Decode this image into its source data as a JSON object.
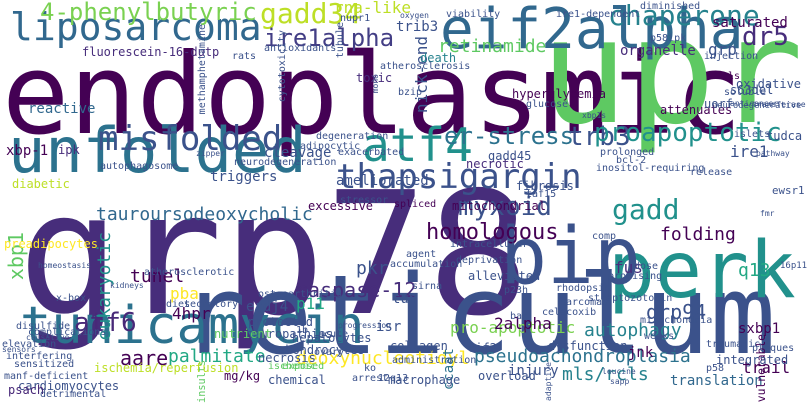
{
  "colors": {
    "background": "#ffffff"
  },
  "words": [
    {
      "text": "endoplasmic",
      "color": "#440154"
    },
    {
      "text": "grp78",
      "color": "#472d7b"
    },
    {
      "text": "upr",
      "color": "#5ec962"
    },
    {
      "text": "reticulum",
      "color": "#3b528b"
    },
    {
      "text": "unfolded",
      "color": "#2c728e"
    },
    {
      "text": "perk",
      "color": "#21918c"
    },
    {
      "text": "bip",
      "color": "#3b528b"
    },
    {
      "text": "eif2alpha",
      "color": "#31688e"
    },
    {
      "text": "atf4",
      "color": "#21918c"
    },
    {
      "text": "tunicamycin",
      "color": "#2c728e"
    },
    {
      "text": "liposarcoma",
      "color": "#31688e"
    },
    {
      "text": "misfolded",
      "color": "#3b528b"
    },
    {
      "text": "thapsigargin",
      "color": "#3b528b"
    },
    {
      "text": "homologous",
      "color": "#440154"
    },
    {
      "text": "myxoid",
      "color": "#3b528b"
    },
    {
      "text": "gadd34",
      "color": "#bddf26"
    },
    {
      "text": "chaperone",
      "color": "#26828e"
    },
    {
      "text": "er-stress",
      "color": "#2c728e"
    },
    {
      "text": "trb3",
      "color": "#3b528b"
    },
    {
      "text": "proapoptotic",
      "color": "#21918c"
    },
    {
      "text": "4-phenylbutyric",
      "color": "#7ad151"
    },
    {
      "text": "ire1alpha",
      "color": "#433e85"
    },
    {
      "text": "dr5",
      "color": "#472d7b"
    },
    {
      "text": "gadd",
      "color": "#21918c"
    },
    {
      "text": "atf6",
      "color": "#482878"
    },
    {
      "text": "caspase-12",
      "color": "#472d7b"
    },
    {
      "text": "tauroursodeoxycholic",
      "color": "#31688e"
    },
    {
      "text": "grp94",
      "color": "#3b528b"
    },
    {
      "text": "pseudoachondroplasia",
      "color": "#2c728e"
    },
    {
      "text": "deoxynucleotidyl",
      "color": "#fde725"
    },
    {
      "text": "mls/rcls",
      "color": "#26828e"
    },
    {
      "text": "palmitate",
      "color": "#22a884"
    },
    {
      "text": "aare",
      "color": "#440154"
    },
    {
      "text": "retinamide",
      "color": "#5ec962"
    },
    {
      "text": "autophagy",
      "color": "#26828e"
    },
    {
      "text": "pro-apoptotic",
      "color": "#7ad151"
    },
    {
      "text": "xbp1",
      "color": "#5ec962"
    },
    {
      "text": "folding",
      "color": "#440154"
    },
    {
      "text": "nick-end",
      "color": "#3b528b"
    },
    {
      "text": "ire1",
      "color": "#3b528b"
    },
    {
      "text": "pkr",
      "color": "#3b528b"
    },
    {
      "text": "2alpha",
      "color": "#440154"
    },
    {
      "text": "trail",
      "color": "#440154"
    },
    {
      "text": "fus",
      "color": "#472d7b"
    },
    {
      "text": "q13",
      "color": "#22a884"
    },
    {
      "text": "tunel",
      "color": "#440154"
    },
    {
      "text": "pba",
      "color": "#fde725"
    },
    {
      "text": "4hpr",
      "color": "#440154"
    },
    {
      "text": "p11",
      "color": "#22a884"
    },
    {
      "text": "tun",
      "color": "#3b528b"
    },
    {
      "text": "erdj4",
      "color": "#3b528b"
    },
    {
      "text": "isr",
      "color": "#3b528b"
    },
    {
      "text": "ccaat",
      "color": "#2c728e"
    },
    {
      "text": "eif2",
      "color": "#3b528b"
    },
    {
      "text": "gadd45",
      "color": "#3b528b"
    },
    {
      "text": "necrotic",
      "color": "#472d7b"
    },
    {
      "text": "triggers",
      "color": "#3b528b"
    },
    {
      "text": "cleavage",
      "color": "#3b528b"
    },
    {
      "text": "ameliorated",
      "color": "#3b528b"
    },
    {
      "text": "organelle",
      "color": "#472d7b"
    },
    {
      "text": "saturated",
      "color": "#440154"
    },
    {
      "text": "grp",
      "color": "#3b528b"
    },
    {
      "text": "sxbp1",
      "color": "#440154"
    },
    {
      "text": "injury",
      "color": "#3b528b"
    },
    {
      "text": "jnk",
      "color": "#440154"
    },
    {
      "text": "dysfunction",
      "color": "#3b528b"
    },
    {
      "text": "translation",
      "color": "#31688e"
    },
    {
      "text": "preadipocytes",
      "color": "#fde725"
    },
    {
      "text": "reactive",
      "color": "#31688e"
    },
    {
      "text": "xbp-1",
      "color": "#440154"
    },
    {
      "text": "ipk",
      "color": "#472d7b"
    },
    {
      "text": "eukaryotic",
      "color": "#21918c"
    },
    {
      "text": "insults",
      "color": "#5ec962"
    },
    {
      "text": "protected",
      "color": "#3b528b"
    },
    {
      "text": "vulnerable",
      "color": "#440154"
    },
    {
      "text": "neurodegenerative",
      "color": "#3b528b"
    },
    {
      "text": "s63del",
      "color": "#3b528b"
    },
    {
      "text": "ewsr1",
      "color": "#3b528b"
    },
    {
      "text": "tudca",
      "color": "#3b528b"
    },
    {
      "text": "rna-like",
      "color": "#bddf26"
    },
    {
      "text": "trib3",
      "color": "#3b528b"
    },
    {
      "text": "fluorescein-16-dutp",
      "color": "#472d7b"
    },
    {
      "text": "diabetic",
      "color": "#bddf26"
    },
    {
      "text": "ischemia/reperfusion",
      "color": "#bddf26"
    },
    {
      "text": "cardiomyocytes",
      "color": "#3b528b"
    },
    {
      "text": "psach",
      "color": "#482878"
    },
    {
      "text": "mg/kg",
      "color": "#440154"
    },
    {
      "text": "death",
      "color": "#26828e"
    },
    {
      "text": "toxic",
      "color": "#472d7b"
    },
    {
      "text": "bzip",
      "color": "#3b528b"
    },
    {
      "text": "neuropathies",
      "color": "#3b528b"
    },
    {
      "text": "chondrocytes",
      "color": "#3b528b"
    },
    {
      "text": "hepatocytes",
      "color": "#3b528b"
    },
    {
      "text": "osteoarthritis",
      "color": "#3b528b"
    },
    {
      "text": "collagen",
      "color": "#3b528b"
    },
    {
      "text": "macrophage",
      "color": "#3b528b"
    },
    {
      "text": "administration",
      "color": "#3b528b"
    },
    {
      "text": "accumulation",
      "color": "#3b528b"
    },
    {
      "text": "chemical",
      "color": "#3b528b"
    },
    {
      "text": "necrosis",
      "color": "#3b528b"
    },
    {
      "text": "nutrient",
      "color": "#5ec962"
    },
    {
      "text": "exposed",
      "color": "#5ec962"
    },
    {
      "text": "ischemic",
      "color": "#5ec962"
    },
    {
      "text": "attenuates",
      "color": "#440154"
    },
    {
      "text": "uorf",
      "color": "#3b528b"
    },
    {
      "text": "integrated",
      "color": "#3b528b"
    },
    {
      "text": "plaques",
      "color": "#3b528b"
    },
    {
      "text": "overload",
      "color": "#3b528b"
    },
    {
      "text": "adaptive",
      "color": "#3b528b"
    },
    {
      "text": "mitochondrial",
      "color": "#440154"
    },
    {
      "text": "hyperglycemia",
      "color": "#440154"
    },
    {
      "text": "excessive",
      "color": "#440154"
    },
    {
      "text": "fibrosis",
      "color": "#3b528b"
    },
    {
      "text": "spliced",
      "color": "#440154"
    },
    {
      "text": "oxidative",
      "color": "#3b528b"
    },
    {
      "text": "transferase",
      "color": "#3b528b"
    },
    {
      "text": "islets",
      "color": "#3b528b"
    },
    {
      "text": "injection",
      "color": "#3b528b"
    },
    {
      "text": "tls",
      "color": "#440154"
    },
    {
      "text": "16p11",
      "color": "#3b528b"
    },
    {
      "text": "sarcomas",
      "color": "#3b528b"
    },
    {
      "text": "deprivation",
      "color": "#3b528b"
    },
    {
      "text": "alleviated",
      "color": "#3b528b"
    },
    {
      "text": "rhodopsin",
      "color": "#3b528b"
    },
    {
      "text": "bax",
      "color": "#3b528b"
    },
    {
      "text": "celecoxib",
      "color": "#3b528b"
    },
    {
      "text": "p23h",
      "color": "#3b528b"
    },
    {
      "text": "sirna",
      "color": "#3b528b"
    },
    {
      "text": "agent",
      "color": "#3b528b"
    },
    {
      "text": "ko",
      "color": "#3b528b"
    },
    {
      "text": "12q13",
      "color": "#3b528b"
    },
    {
      "text": "arrest",
      "color": "#3b528b"
    },
    {
      "text": "acute",
      "color": "#3b528b"
    },
    {
      "text": "1b",
      "color": "#3b528b"
    },
    {
      "text": "atherosclerotic",
      "color": "#3b528b"
    },
    {
      "text": "diet",
      "color": "#3b528b"
    },
    {
      "text": "secretory",
      "color": "#3b528b"
    },
    {
      "text": "disulfide",
      "color": "#3b528b"
    },
    {
      "text": "elevation",
      "color": "#3b528b"
    },
    {
      "text": "sensors",
      "color": "#3b528b"
    },
    {
      "text": "interfering",
      "color": "#3b528b"
    },
    {
      "text": "sensitized",
      "color": "#3b528b"
    },
    {
      "text": "manf-deficient",
      "color": "#3b528b"
    },
    {
      "text": "detrimental",
      "color": "#3b528b"
    },
    {
      "text": "complications",
      "color": "#3b528b"
    },
    {
      "text": "causative",
      "color": "#3b528b"
    },
    {
      "text": "autophagosome",
      "color": "#3b528b"
    },
    {
      "text": "neurodegeneration",
      "color": "#3b528b"
    },
    {
      "text": "degeneration",
      "color": "#3b528b"
    },
    {
      "text": "rats",
      "color": "#3b528b"
    },
    {
      "text": "antioxidants",
      "color": "#3b528b"
    },
    {
      "text": "viability",
      "color": "#3b528b"
    },
    {
      "text": "ire1-dependent",
      "color": "#3b528b"
    },
    {
      "text": "intracellular",
      "color": "#3b528b"
    },
    {
      "text": "zipper",
      "color": "#3b528b"
    },
    {
      "text": "exacerbated",
      "color": "#3b528b"
    },
    {
      "text": "atherosclerosis",
      "color": "#3b528b"
    },
    {
      "text": "adipocytic",
      "color": "#3b528b"
    },
    {
      "text": "glucose",
      "color": "#3b528b"
    },
    {
      "text": "bcl-2",
      "color": "#3b528b"
    },
    {
      "text": "nupr1",
      "color": "#3b528b"
    },
    {
      "text": "taf15",
      "color": "#3b528b"
    },
    {
      "text": "weeks",
      "color": "#3b528b"
    },
    {
      "text": "mitochondria",
      "color": "#3b528b"
    },
    {
      "text": "traumatic",
      "color": "#3b528b"
    },
    {
      "text": "p58",
      "color": "#3b528b"
    },
    {
      "text": "inositol-requiring",
      "color": "#3b528b"
    },
    {
      "text": "release",
      "color": "#3b528b"
    },
    {
      "text": "prolonged",
      "color": "#3b528b"
    },
    {
      "text": "comp",
      "color": "#3b528b"
    },
    {
      "text": "dose",
      "color": "#3b528b"
    },
    {
      "text": "promising",
      "color": "#3b528b"
    },
    {
      "text": "streptozotocin",
      "color": "#3b528b"
    },
    {
      "text": "methamphetamine",
      "color": "#3b528b"
    },
    {
      "text": "cytotoxicity",
      "color": "#3b528b"
    },
    {
      "text": "tubule",
      "color": "#3b528b"
    },
    {
      "text": "mono",
      "color": "#3b528b"
    },
    {
      "text": "oxygen",
      "color": "#3b528b"
    },
    {
      "text": "p58ipk",
      "color": "#3b528b"
    },
    {
      "text": "diminished",
      "color": "#3b528b"
    },
    {
      "text": "soluble",
      "color": "#3b528b"
    },
    {
      "text": "anticancer",
      "color": "#3b528b"
    },
    {
      "text": "homeostasis",
      "color": "#3b528b"
    },
    {
      "text": "x-box",
      "color": "#3b528b"
    },
    {
      "text": "kidneys",
      "color": "#3b528b"
    },
    {
      "text": "stressor",
      "color": "#3b528b"
    },
    {
      "text": "sapp",
      "color": "#3b528b"
    },
    {
      "text": "leucine",
      "color": "#3b528b"
    },
    {
      "text": "progression",
      "color": "#3b528b"
    },
    {
      "text": "pathway",
      "color": "#3b528b"
    },
    {
      "text": "fmr",
      "color": "#3b528b"
    },
    {
      "text": "ovary",
      "color": "#3b528b"
    },
    {
      "text": "xbp1s",
      "color": "#3b528b"
    }
  ]
}
